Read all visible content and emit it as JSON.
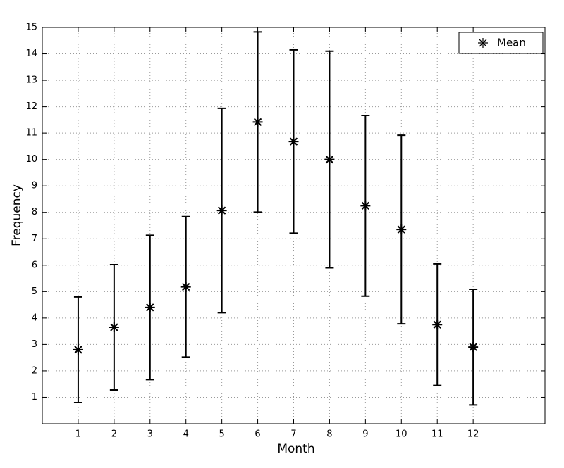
{
  "chart_data": {
    "type": "errorbar",
    "x_label": "Month",
    "y_label": "Frequency",
    "x": [
      1,
      2,
      3,
      4,
      5,
      6,
      7,
      8,
      9,
      10,
      11,
      12
    ],
    "series": [
      {
        "name": "Mean",
        "color": "#000000",
        "values": [
          2.8,
          3.65,
          4.4,
          5.18,
          8.07,
          11.42,
          10.68,
          10.0,
          8.25,
          7.35,
          3.75,
          2.9
        ],
        "errors": [
          2.0,
          2.37,
          2.73,
          2.66,
          3.87,
          3.41,
          3.47,
          4.1,
          3.42,
          3.57,
          2.3,
          2.19
        ]
      }
    ],
    "xlim": [
      0,
      14
    ],
    "xticks": [
      1,
      2,
      3,
      4,
      5,
      6,
      7,
      8,
      9,
      10,
      11,
      12
    ],
    "ylim": [
      0,
      15
    ],
    "yticks": [
      1,
      2,
      3,
      4,
      5,
      6,
      7,
      8,
      9,
      10,
      11,
      12,
      13,
      14,
      15
    ],
    "grid": true,
    "legend": "upper right"
  }
}
